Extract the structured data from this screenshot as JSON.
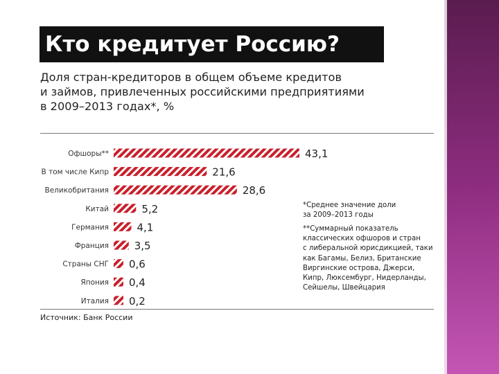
{
  "title": "Кто кредитует Россию?",
  "subtitle_lines": [
    "Доля стран-кредиторов в общем объеме кредитов",
    "и займов, привлеченных российскими предприятиями",
    "в 2009–2013 годах*, %"
  ],
  "notes": {
    "note1_lines": [
      "*Среднее значение доли",
      "за 2009–2013 годы"
    ],
    "note2_lines": [
      "**Суммарный показатель",
      "классических офшоров и стран",
      "с либеральной юрисдикцией, таки",
      "как Багамы, Белиз, Британские",
      "Виргинские острова, Джерси,",
      "Кипр, Люксембург, Нидерланды,",
      "Сейшелы, Швейцария"
    ]
  },
  "source": "Источник: Банк России",
  "colors": {
    "bar_stripe": "#c8202c",
    "title_bg": "#111111",
    "side_panel": "#8e2d80"
  },
  "chart_data": {
    "type": "bar",
    "orientation": "horizontal",
    "categories": [
      "Офшоры**",
      "В том числе Кипр",
      "Великобритания",
      "Китай",
      "Германия",
      "Франция",
      "Страны СНГ",
      "Япония",
      "Италия"
    ],
    "values": [
      43.1,
      21.6,
      28.6,
      5.2,
      4.1,
      3.5,
      0.6,
      0.4,
      0.2
    ],
    "value_labels": [
      "43,1",
      "21,6",
      "28,6",
      "5,2",
      "4,1",
      "3,5",
      "0,6",
      "0,4",
      "0,2"
    ],
    "xlim": [
      0,
      43.1
    ],
    "grid": false,
    "legend": "none"
  }
}
